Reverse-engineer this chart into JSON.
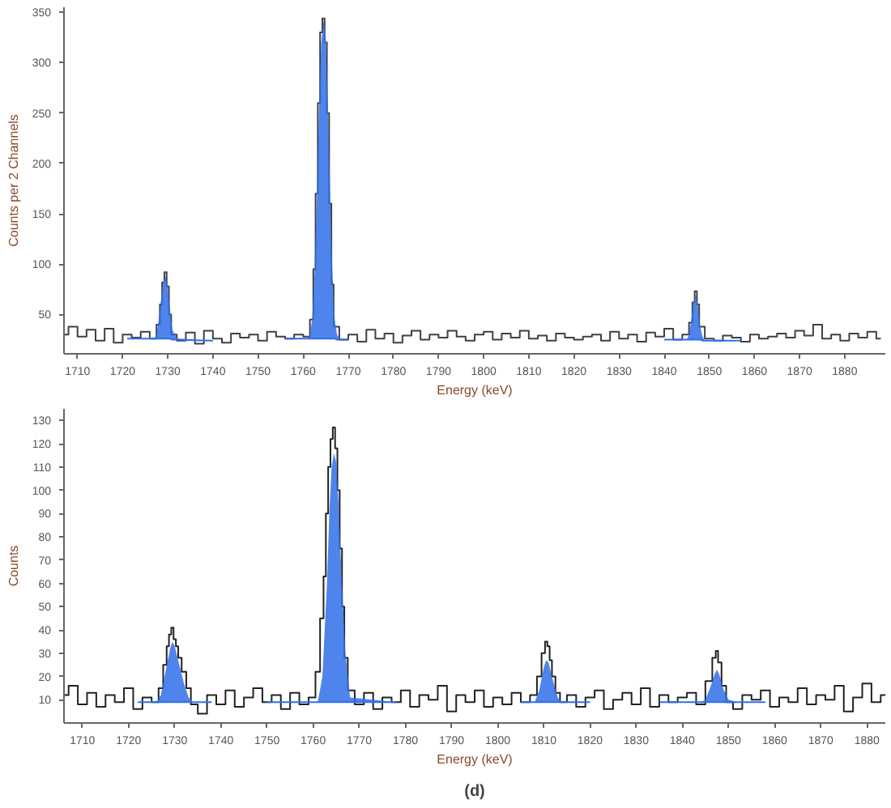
{
  "chart_data": [
    {
      "type": "step",
      "ylabel": "Counts per 2 Channels",
      "xlabel": "Energy (keV)",
      "xlim": [
        1707,
        1889
      ],
      "ylim": [
        11,
        355
      ],
      "xticks": [
        1710,
        1720,
        1730,
        1740,
        1750,
        1760,
        1770,
        1780,
        1790,
        1800,
        1810,
        1820,
        1830,
        1840,
        1850,
        1860,
        1870,
        1880
      ],
      "yticks": [
        50,
        100,
        150,
        200,
        250,
        300,
        350
      ],
      "grid": false,
      "series": [
        {
          "color": "#404040",
          "x": [
            1707,
            1709,
            1711,
            1713,
            1715,
            1717,
            1719,
            1721,
            1723,
            1725,
            1727,
            1728,
            1728.5,
            1729,
            1729.5,
            1730,
            1730.5,
            1731,
            1733,
            1735,
            1737,
            1739,
            1741,
            1743,
            1745,
            1747,
            1749,
            1751,
            1753,
            1755,
            1757,
            1759,
            1761,
            1762,
            1762.5,
            1763,
            1763.5,
            1764,
            1764.5,
            1765,
            1765.5,
            1766,
            1766.5,
            1767,
            1769,
            1771,
            1773,
            1775,
            1777,
            1779,
            1781,
            1783,
            1785,
            1787,
            1789,
            1791,
            1793,
            1795,
            1797,
            1799,
            1801,
            1803,
            1805,
            1807,
            1809,
            1811,
            1813,
            1815,
            1817,
            1819,
            1821,
            1823,
            1825,
            1827,
            1829,
            1831,
            1833,
            1835,
            1837,
            1839,
            1841,
            1843,
            1845,
            1846,
            1846.5,
            1847,
            1847.5,
            1848,
            1850,
            1852,
            1854,
            1856,
            1858,
            1860,
            1862,
            1864,
            1866,
            1868,
            1870,
            1872,
            1874,
            1876,
            1878,
            1880,
            1882,
            1884,
            1886,
            1888
          ],
          "values": [
            30,
            38,
            28,
            35,
            24,
            36,
            22,
            30,
            27,
            33,
            26,
            40,
            60,
            82,
            92,
            78,
            50,
            30,
            24,
            32,
            21,
            34,
            26,
            22,
            31,
            27,
            30,
            24,
            33,
            28,
            26,
            30,
            28,
            45,
            95,
            170,
            260,
            330,
            344,
            320,
            250,
            160,
            80,
            38,
            25,
            30,
            23,
            35,
            26,
            31,
            22,
            29,
            34,
            25,
            30,
            27,
            34,
            28,
            24,
            30,
            33,
            25,
            31,
            27,
            34,
            26,
            29,
            24,
            31,
            27,
            25,
            28,
            30,
            24,
            33,
            26,
            30,
            23,
            32,
            28,
            36,
            25,
            30,
            42,
            62,
            73,
            60,
            38,
            26,
            24,
            29,
            27,
            23,
            30,
            26,
            28,
            31,
            27,
            34,
            29,
            40,
            26,
            30,
            24,
            31,
            27,
            33,
            26
          ]
        },
        {
          "type": "line",
          "color": "#2f6fe8",
          "x": [
            1721,
            1727,
            1727.5,
            1728,
            1728.5,
            1729,
            1729.5,
            1730,
            1730.5,
            1731,
            1732,
            1740
          ],
          "values": [
            26,
            26,
            26,
            26,
            26,
            26,
            26,
            26,
            26,
            25,
            25,
            24
          ],
          "lower": [
            26,
            26,
            26,
            26,
            26,
            26,
            26,
            26,
            26,
            25,
            25,
            24
          ],
          "upper": [
            26,
            26,
            30,
            45,
            65,
            82,
            88,
            78,
            55,
            35,
            26,
            24
          ]
        },
        {
          "type": "line",
          "color": "#2f6fe8",
          "x": [
            1756,
            1761,
            1761.5,
            1762,
            1762.5,
            1763,
            1763.5,
            1764,
            1764.5,
            1765,
            1765.5,
            1766,
            1766.5,
            1767,
            1767.5,
            1768,
            1770
          ],
          "values": [
            26,
            26,
            26,
            26,
            26,
            26,
            26,
            26,
            26,
            26,
            26,
            26,
            26,
            26,
            25,
            25,
            25
          ],
          "lower": [
            26,
            26,
            26,
            26,
            26,
            26,
            26,
            26,
            26,
            26,
            26,
            26,
            26,
            26,
            25,
            25,
            25
          ],
          "upper": [
            26,
            26,
            30,
            45,
            90,
            160,
            250,
            320,
            342,
            325,
            255,
            165,
            90,
            45,
            30,
            26,
            25
          ]
        },
        {
          "type": "line",
          "color": "#2f6fe8",
          "x": [
            1840,
            1845,
            1845.5,
            1846,
            1846.5,
            1847,
            1847.5,
            1848,
            1848.5,
            1849,
            1857
          ],
          "values": [
            25,
            25,
            25,
            25,
            25,
            25,
            25,
            25,
            24,
            24,
            24
          ],
          "lower": [
            25,
            25,
            25,
            25,
            25,
            25,
            25,
            25,
            24,
            24,
            24
          ],
          "upper": [
            25,
            25,
            30,
            45,
            62,
            70,
            58,
            38,
            28,
            24,
            24
          ]
        }
      ]
    },
    {
      "type": "step",
      "ylabel": "Counts",
      "xlabel": "Energy (keV)",
      "xlim": [
        1706,
        1884
      ],
      "ylim": [
        0,
        135
      ],
      "xticks": [
        1710,
        1720,
        1730,
        1740,
        1750,
        1760,
        1770,
        1780,
        1790,
        1800,
        1810,
        1820,
        1830,
        1840,
        1850,
        1860,
        1870,
        1880
      ],
      "yticks": [
        10,
        20,
        30,
        40,
        50,
        60,
        70,
        80,
        90,
        100,
        110,
        120,
        130
      ],
      "grid": false,
      "annotations": [
        "(d)"
      ],
      "series": [
        {
          "color": "#222222",
          "x": [
            1706,
            1708,
            1710,
            1712,
            1714,
            1716,
            1718,
            1720,
            1722,
            1724,
            1726,
            1727,
            1728,
            1728.5,
            1729,
            1729.5,
            1730,
            1730.5,
            1731,
            1732,
            1733,
            1734,
            1736,
            1738,
            1740,
            1742,
            1744,
            1746,
            1748,
            1750,
            1752,
            1754,
            1756,
            1758,
            1760,
            1761,
            1762,
            1762.5,
            1763,
            1763.5,
            1764,
            1764.5,
            1765,
            1765.5,
            1766,
            1766.5,
            1767,
            1768,
            1770,
            1772,
            1774,
            1776,
            1778,
            1780,
            1782,
            1784,
            1786,
            1788,
            1790,
            1792,
            1794,
            1796,
            1798,
            1800,
            1802,
            1804,
            1806,
            1808,
            1809,
            1810,
            1810.5,
            1811,
            1811.5,
            1812,
            1813,
            1814,
            1816,
            1818,
            1820,
            1822,
            1824,
            1826,
            1828,
            1830,
            1832,
            1834,
            1836,
            1838,
            1840,
            1842,
            1844,
            1846,
            1847,
            1847.5,
            1848,
            1849,
            1850,
            1852,
            1854,
            1856,
            1858,
            1860,
            1862,
            1864,
            1866,
            1868,
            1870,
            1872,
            1874,
            1876,
            1878,
            1880,
            1882,
            1884
          ],
          "values": [
            12,
            16,
            8,
            13,
            7,
            12,
            9,
            15,
            6,
            11,
            9,
            15,
            25,
            33,
            38,
            41,
            36,
            33,
            28,
            22,
            15,
            8,
            4,
            12,
            8,
            14,
            7,
            11,
            15,
            9,
            12,
            6,
            13,
            8,
            11,
            22,
            45,
            63,
            90,
            110,
            122,
            127,
            118,
            100,
            75,
            50,
            28,
            14,
            8,
            13,
            6,
            11,
            9,
            14,
            7,
            12,
            10,
            16,
            5,
            12,
            9,
            14,
            7,
            11,
            8,
            13,
            9,
            12,
            20,
            30,
            35,
            33,
            27,
            20,
            13,
            9,
            12,
            7,
            11,
            14,
            6,
            10,
            13,
            8,
            15,
            7,
            12,
            9,
            11,
            13,
            8,
            18,
            28,
            31,
            26,
            16,
            9,
            6,
            12,
            10,
            14,
            7,
            11,
            9,
            15,
            8,
            12,
            10,
            16,
            5,
            11,
            17,
            9,
            12
          ]
        },
        {
          "type": "line",
          "color": "#2f6fe8",
          "x": [
            1722,
            1726,
            1727,
            1728,
            1729,
            1729.5,
            1730,
            1731,
            1732,
            1733,
            1734,
            1738
          ],
          "values": [
            9,
            9,
            9,
            9,
            9,
            9,
            9,
            9,
            9,
            9,
            9,
            9
          ],
          "lower": [
            9,
            9,
            9,
            9,
            9,
            9,
            9,
            9,
            9,
            9,
            9,
            9
          ],
          "upper": [
            9,
            9,
            12,
            22,
            32,
            35,
            33,
            25,
            17,
            11,
            9,
            9
          ]
        },
        {
          "type": "line",
          "color": "#2f6fe8",
          "x": [
            1750,
            1761,
            1762,
            1763,
            1763.5,
            1764,
            1764.5,
            1765,
            1765.5,
            1766,
            1767,
            1768,
            1778
          ],
          "values": [
            9,
            9,
            9,
            9,
            9,
            9,
            9,
            9,
            9,
            9,
            9,
            9,
            9
          ],
          "lower": [
            9,
            9,
            9,
            9,
            9,
            9,
            9,
            9,
            9,
            9,
            9,
            9,
            9
          ],
          "upper": [
            9,
            9,
            20,
            60,
            90,
            110,
            116,
            112,
            95,
            70,
            30,
            11,
            9
          ]
        },
        {
          "type": "line",
          "color": "#2f6fe8",
          "x": [
            1805,
            1808,
            1809,
            1810,
            1810.5,
            1811,
            1812,
            1813,
            1814,
            1820
          ],
          "values": [
            9,
            9,
            9,
            9,
            9,
            9,
            9,
            9,
            9,
            9
          ],
          "lower": [
            9,
            9,
            9,
            9,
            9,
            9,
            9,
            9,
            9,
            9
          ],
          "upper": [
            9,
            9,
            14,
            24,
            27,
            26,
            18,
            11,
            9,
            9
          ]
        },
        {
          "type": "line",
          "color": "#2f6fe8",
          "x": [
            1835,
            1844,
            1845,
            1846,
            1847,
            1847.5,
            1848,
            1849,
            1850,
            1852,
            1858
          ],
          "values": [
            9,
            9,
            9,
            9,
            9,
            9,
            9,
            9,
            9,
            9,
            9
          ],
          "lower": [
            9,
            9,
            9,
            9,
            9,
            9,
            9,
            9,
            9,
            9,
            9
          ],
          "upper": [
            9,
            9,
            10,
            15,
            21,
            23,
            21,
            14,
            10,
            9,
            9
          ]
        }
      ]
    }
  ]
}
